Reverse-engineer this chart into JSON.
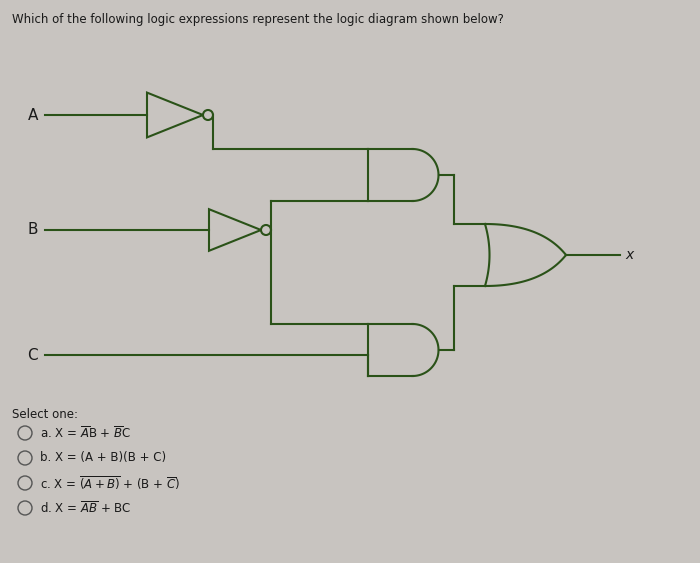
{
  "title": "Which of the following logic expressions represent the logic diagram shown below?",
  "bg_color": "#c8c4c0",
  "gate_color": "#2a5218",
  "line_color": "#2a5218",
  "text_color": "#1a1a1a",
  "select_one": "Select one:",
  "option_texts": [
    "a. X = $\\overline{A}$B + $\\overline{B}$C",
    "b. X = (A + B)(B + C)",
    "c. X = $\\overline{(A + B)}$ + (B + $\\overline{C}$)",
    "d. X = $\\overline{AB}$ + BC"
  ],
  "fig_width": 7.0,
  "fig_height": 5.63,
  "dpi": 100
}
